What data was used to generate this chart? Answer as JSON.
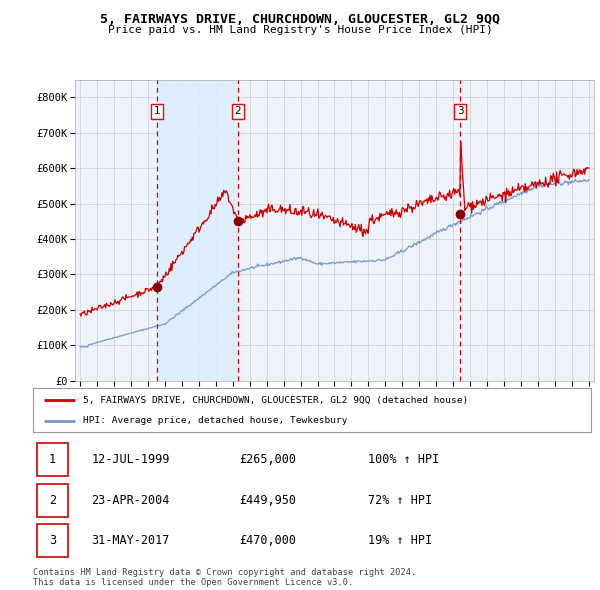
{
  "title": "5, FAIRWAYS DRIVE, CHURCHDOWN, GLOUCESTER, GL2 9QQ",
  "subtitle": "Price paid vs. HM Land Registry's House Price Index (HPI)",
  "legend_line1": "5, FAIRWAYS DRIVE, CHURCHDOWN, GLOUCESTER, GL2 9QQ (detached house)",
  "legend_line2": "HPI: Average price, detached house, Tewkesbury",
  "transactions": [
    {
      "num": 1,
      "date_str": "12-JUL-1999",
      "price": 265000,
      "pct": "100%",
      "x": 1999.53
    },
    {
      "num": 2,
      "date_str": "23-APR-2004",
      "price": 449950,
      "pct": "72%",
      "x": 2004.31
    },
    {
      "num": 3,
      "date_str": "31-MAY-2017",
      "price": 470000,
      "pct": "19%",
      "x": 2017.41
    }
  ],
  "red_line_color": "#cc0000",
  "blue_line_color": "#7799cc",
  "dashed_line_color": "#dd0000",
  "marker_color": "#880000",
  "shade_color": "#ddeeff",
  "grid_color": "#cccccc",
  "background_color": "#ffffff",
  "plot_bg_color": "#eef2fa",
  "footer_text": "Contains HM Land Registry data © Crown copyright and database right 2024.\nThis data is licensed under the Open Government Licence v3.0.",
  "ylim": [
    0,
    850000
  ],
  "yticks": [
    0,
    100000,
    200000,
    300000,
    400000,
    500000,
    600000,
    700000,
    800000
  ],
  "ytick_labels": [
    "£0",
    "£100K",
    "£200K",
    "£300K",
    "£400K",
    "£500K",
    "£600K",
    "£700K",
    "£800K"
  ],
  "xstart": 1995,
  "xend": 2025,
  "xticks": [
    1995,
    1996,
    1997,
    1998,
    1999,
    2000,
    2001,
    2002,
    2003,
    2004,
    2005,
    2006,
    2007,
    2008,
    2009,
    2010,
    2011,
    2012,
    2013,
    2014,
    2015,
    2016,
    2017,
    2018,
    2019,
    2020,
    2021,
    2022,
    2023,
    2024,
    2025
  ]
}
